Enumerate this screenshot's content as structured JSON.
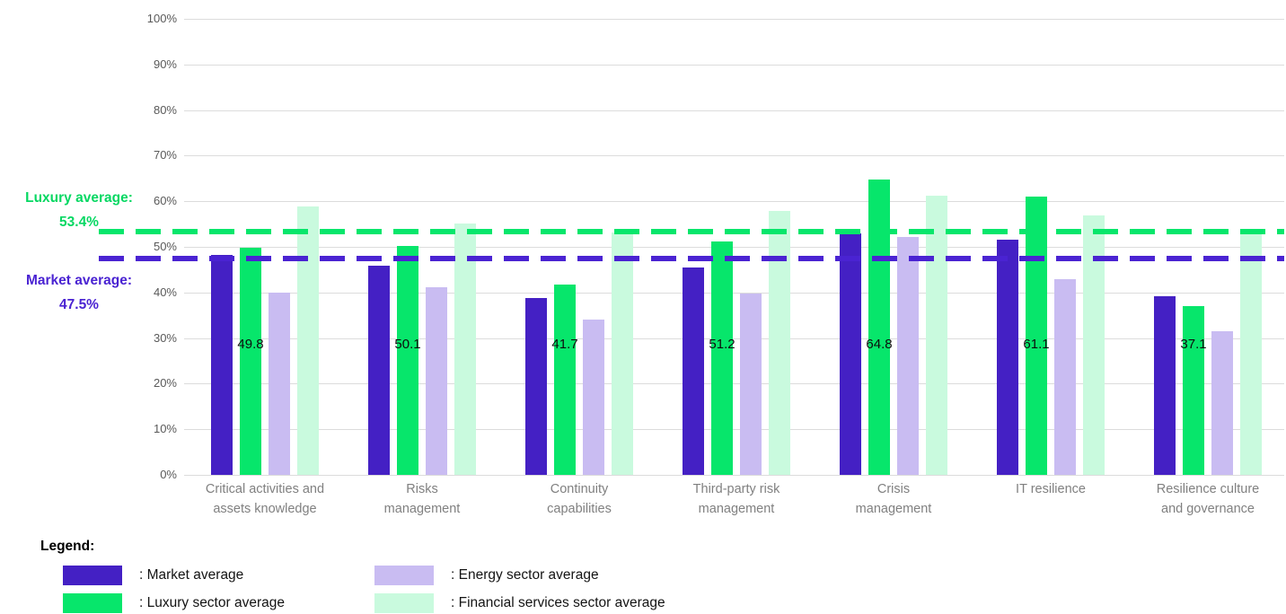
{
  "chart_data": {
    "type": "bar",
    "title": "",
    "categories": [
      "Critical activities and\nassets knowledge",
      "Risks\nmanagement",
      "Continuity\ncapabilities",
      "Third-party risk\nmanagement",
      "Crisis\nmanagement",
      "IT resilience",
      "Resilience culture\nand governance"
    ],
    "series": [
      {
        "name": "Market average",
        "color": "#4420c4",
        "values": [
          48.3,
          45.9,
          38.7,
          45.4,
          52.9,
          51.5,
          39.2
        ]
      },
      {
        "name": "Luxury sector average",
        "color": "#07e66b",
        "values": [
          49.8,
          50.1,
          41.7,
          51.2,
          64.8,
          61.1,
          37.1
        ],
        "data_labels": [
          "49.8",
          "50.1",
          "41.7",
          "51.2",
          "64.8",
          "61.1",
          "37.1"
        ]
      },
      {
        "name": "Energy sector average",
        "color": "#c9bcf2",
        "values": [
          40.0,
          41.2,
          34.1,
          39.7,
          52.1,
          43.0,
          31.4
        ]
      },
      {
        "name": "Financial services sector average",
        "color": "#c9fade",
        "values": [
          58.9,
          55.2,
          53.1,
          57.8,
          61.3,
          56.8,
          53.0
        ]
      }
    ],
    "y_ticks": [
      "0%",
      "10%",
      "20%",
      "30%",
      "40%",
      "50%",
      "60%",
      "70%",
      "80%",
      "90%",
      "100%"
    ],
    "ylim": [
      0,
      100
    ],
    "grid": "horizontal",
    "legend_position": "bottom",
    "reference_lines": [
      {
        "name": "luxury-average",
        "label": "Luxury average:",
        "value_text": "53.4%",
        "value": 53.4,
        "color": "#07e66b",
        "text_color": "#07d863"
      },
      {
        "name": "market-average",
        "label": "Market average:",
        "value_text": "47.5%",
        "value": 47.5,
        "color": "#4a23d2",
        "text_color": "#4a23d2"
      }
    ]
  },
  "legend": {
    "title": "Legend:",
    "items": [
      {
        "label": ": Market average",
        "color": "#4420c4"
      },
      {
        "label": ": Luxury sector average",
        "color": "#07e66b"
      },
      {
        "label": ": Energy sector average",
        "color": "#c9bcf2"
      },
      {
        "label": ": Financial services sector average",
        "color": "#c9fade"
      }
    ]
  }
}
